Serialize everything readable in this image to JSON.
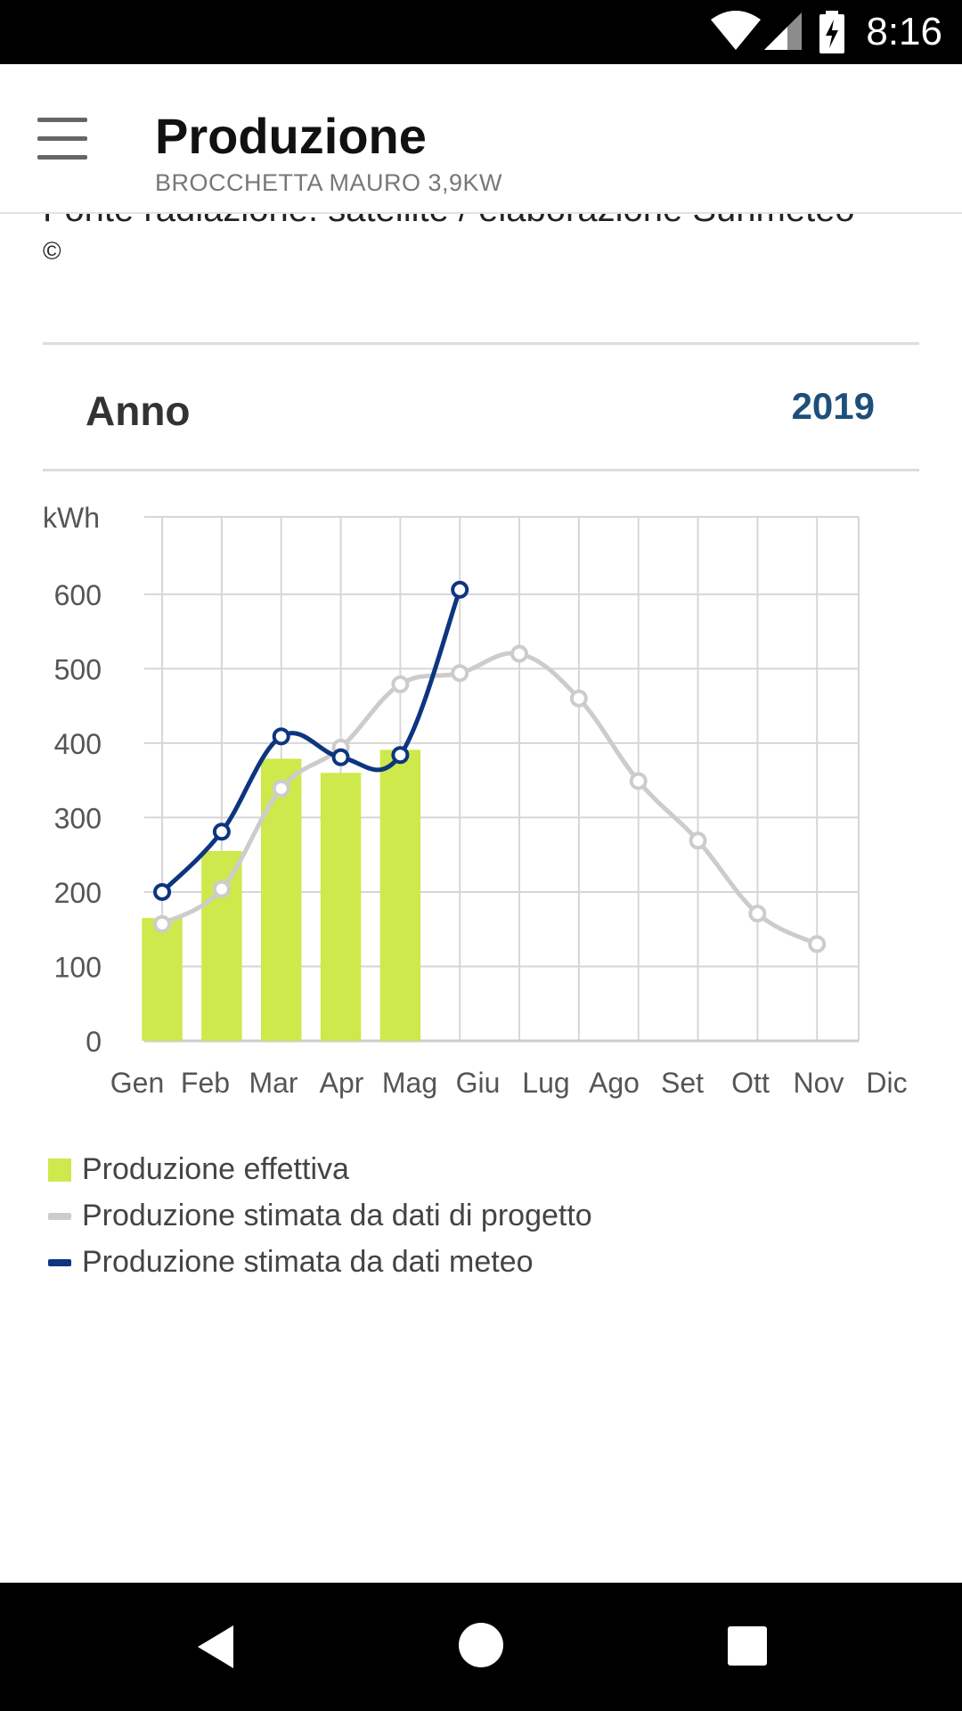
{
  "status_bar": {
    "time": "8:16",
    "icons": [
      "wifi-icon",
      "signal-icon",
      "battery-charging-icon"
    ]
  },
  "app_bar": {
    "menu_icon": "hamburger-menu-icon",
    "title": "Produzione",
    "subtitle": "BROCCHETTA MAURO 3,9KW"
  },
  "content": {
    "source_line": "Fonte radiazione: satellite / elaborazione Sunmeteo",
    "copyright": "©",
    "period_label": "Anno",
    "period_value": "2019"
  },
  "chart_data": {
    "type": "bar",
    "ylabel": "kWh",
    "ylim": [
      0,
      680
    ],
    "yticks": [
      0,
      100,
      200,
      300,
      400,
      500,
      600
    ],
    "categories": [
      "Gen",
      "Feb",
      "Mar",
      "Apr",
      "Mag",
      "Giu",
      "Lug",
      "Ago",
      "Set",
      "Ott",
      "Nov",
      "Dic"
    ],
    "grid": true,
    "colors": {
      "effettiva": "#cde94b",
      "progetto": "#cccccc",
      "meteo": "#0d3580"
    },
    "series": [
      {
        "name": "Produzione effettiva",
        "kind": "bar",
        "values": [
          165,
          255,
          379,
          360,
          391,
          null,
          null,
          null,
          null,
          null,
          null,
          null
        ]
      },
      {
        "name": "Produzione stimata da dati di progetto",
        "kind": "line",
        "values": [
          157,
          204,
          339,
          394,
          479,
          494,
          520,
          460,
          349,
          269,
          171,
          130
        ]
      },
      {
        "name": "Produzione stimata da dati meteo",
        "kind": "line",
        "values": [
          200,
          281,
          409,
          381,
          384,
          606,
          null,
          null,
          null,
          null,
          null,
          null
        ]
      }
    ]
  },
  "nav_bar": {
    "back": "back-icon",
    "home": "home-icon",
    "recents": "recents-icon"
  }
}
